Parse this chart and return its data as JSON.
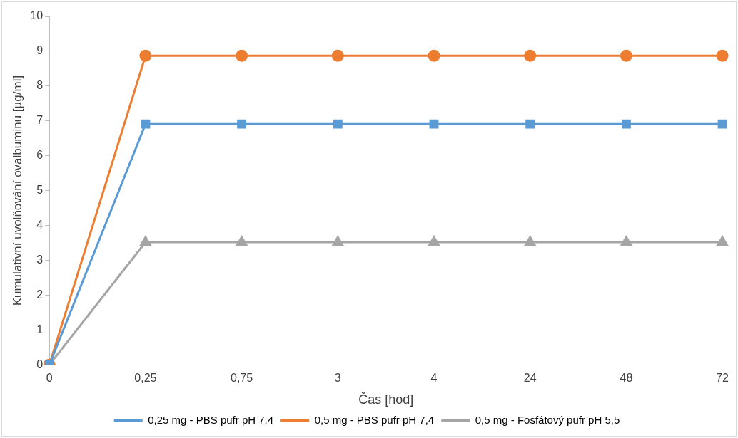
{
  "chart_data": {
    "type": "line",
    "xlabel": "Čas [hod]",
    "ylabel": "Kumulativní uvolňování ovalbuminu [µg/ml]",
    "categories": [
      "0",
      "0,25",
      "0,75",
      "3",
      "4",
      "24",
      "48",
      "72"
    ],
    "ylim": [
      0,
      10
    ],
    "yticks": [
      0,
      1,
      2,
      3,
      4,
      5,
      6,
      7,
      8,
      9,
      10
    ],
    "grid": false,
    "legend": "bottom",
    "line_style": "solid",
    "series": [
      {
        "name": "0,25 mg - PBS pufr pH 7,4",
        "color": "#5b9bd5",
        "marker": "square",
        "values": [
          0,
          6.91,
          6.91,
          6.91,
          6.91,
          6.91,
          6.91,
          6.91
        ]
      },
      {
        "name": "0,5 mg - PBS pufr pH 7,4",
        "color": "#ed7d31",
        "marker": "circle",
        "values": [
          0,
          8.87,
          8.87,
          8.87,
          8.87,
          8.87,
          8.87,
          8.87
        ]
      },
      {
        "name": "0,5 mg - Fosfátový pufr pH 5,5",
        "color": "#a5a5a5",
        "marker": "triangle",
        "values": [
          0,
          3.52,
          3.52,
          3.52,
          3.52,
          3.52,
          3.52,
          3.52
        ]
      }
    ]
  }
}
